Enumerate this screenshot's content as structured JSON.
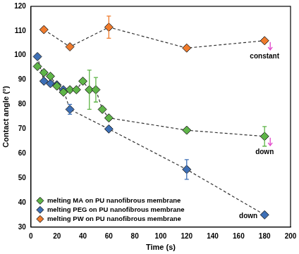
{
  "chart_data": {
    "type": "line",
    "x_label": "Time (s)",
    "y_label": "Contact angle (°)",
    "xlim": [
      0,
      200
    ],
    "xticks": [
      0,
      20,
      40,
      60,
      80,
      100,
      120,
      140,
      160,
      180,
      200
    ],
    "ylim": [
      30,
      120
    ],
    "yticks": [
      30,
      40,
      50,
      60,
      70,
      80,
      90,
      100,
      110,
      120
    ],
    "grid": false,
    "legend": "lower left",
    "marker": "diamond",
    "line_style": "dashed",
    "series": [
      {
        "name": "melting MA on PU nanofibrous membrane",
        "color": "#5fb548",
        "x": [
          5,
          10,
          15,
          20,
          25,
          30,
          35,
          40,
          45,
          50,
          55,
          60,
          120,
          180
        ],
        "values": [
          95.5,
          93,
          91.5,
          87.5,
          85,
          86,
          86,
          89.5,
          86,
          86,
          78,
          74.5,
          69.5,
          67
        ],
        "errors": [
          null,
          null,
          null,
          null,
          null,
          null,
          null,
          null,
          8,
          5,
          null,
          null,
          null,
          4
        ]
      },
      {
        "name": "melting PEG on PU nanofibrous membrane",
        "color": "#3d6fb6",
        "x": [
          5,
          10,
          15,
          20,
          25,
          30,
          60,
          120,
          180
        ],
        "values": [
          99.5,
          89.5,
          88.5,
          88,
          86,
          78,
          70,
          53.5,
          35
        ],
        "errors": [
          null,
          null,
          null,
          null,
          null,
          2,
          null,
          4,
          null
        ]
      },
      {
        "name": "melting PW on PU nanofibrous membrane",
        "color": "#f07b2c",
        "x": [
          10,
          30,
          60,
          120,
          180
        ],
        "values": [
          110.5,
          103.5,
          111.5,
          103,
          106
        ],
        "errors": [
          null,
          null,
          4.5,
          null,
          null
        ]
      }
    ],
    "annotations": [
      {
        "text": "constant",
        "series": "melting PW on PU nanofibrous membrane"
      },
      {
        "text": "down",
        "series": "melting MA on PU nanofibrous membrane"
      },
      {
        "text": "down",
        "series": "melting PEG on PU nanofibrous membrane"
      }
    ]
  }
}
